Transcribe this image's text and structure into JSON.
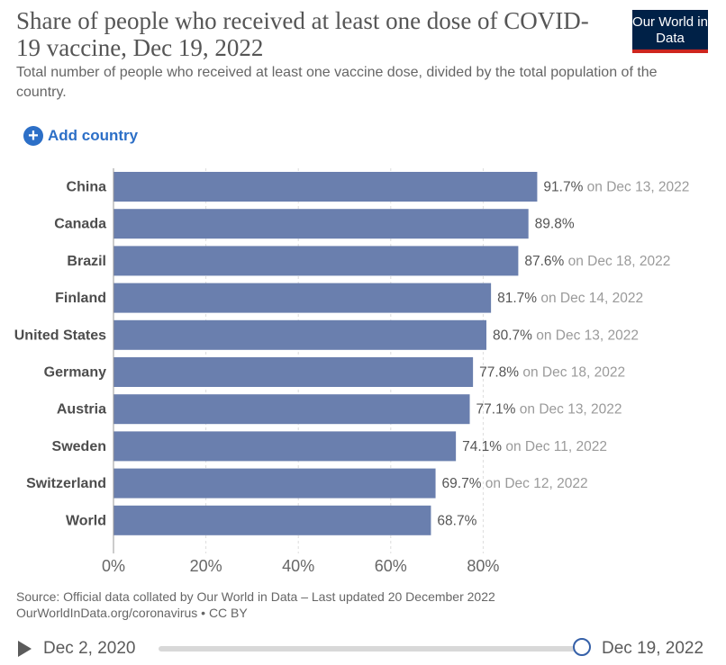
{
  "header": {
    "title": "Share of people who received at least one dose of COVID-19 vaccine, Dec 19, 2022",
    "subtitle": "Total number of people who received at least one vaccine dose, divided by the total population of the country.",
    "logo_text": "Our World in Data"
  },
  "controls": {
    "add_country_label": "Add country"
  },
  "chart_data": {
    "type": "bar",
    "orientation": "horizontal",
    "categories": [
      "China",
      "Canada",
      "Brazil",
      "Finland",
      "United States",
      "Germany",
      "Austria",
      "Sweden",
      "Switzerland",
      "World"
    ],
    "values": [
      91.7,
      89.8,
      87.6,
      81.7,
      80.7,
      77.8,
      77.1,
      74.1,
      69.7,
      68.7
    ],
    "value_labels": [
      "91.7%",
      "89.8%",
      "87.6%",
      "81.7%",
      "80.7%",
      "77.8%",
      "77.1%",
      "74.1%",
      "69.7%",
      "68.7%"
    ],
    "date_notes": [
      "on Dec 13, 2022",
      "",
      "on Dec 18, 2022",
      "on Dec 14, 2022",
      "on Dec 13, 2022",
      "on Dec 18, 2022",
      "on Dec 13, 2022",
      "on Dec 11, 2022",
      "on Dec 12, 2022",
      ""
    ],
    "xlim": [
      0,
      100
    ],
    "xticks": [
      0,
      20,
      40,
      60,
      80
    ],
    "xtick_labels": [
      "0%",
      "20%",
      "40%",
      "60%",
      "80%"
    ],
    "grid": true,
    "bar_color": "#6a7fae"
  },
  "footer": {
    "source": "Source: Official data collated by Our World in Data – Last updated 20 December 2022",
    "link": "OurWorldInData.org/coronavirus • CC BY"
  },
  "timeline": {
    "start_label": "Dec 2, 2020",
    "end_label": "Dec 19, 2022"
  }
}
